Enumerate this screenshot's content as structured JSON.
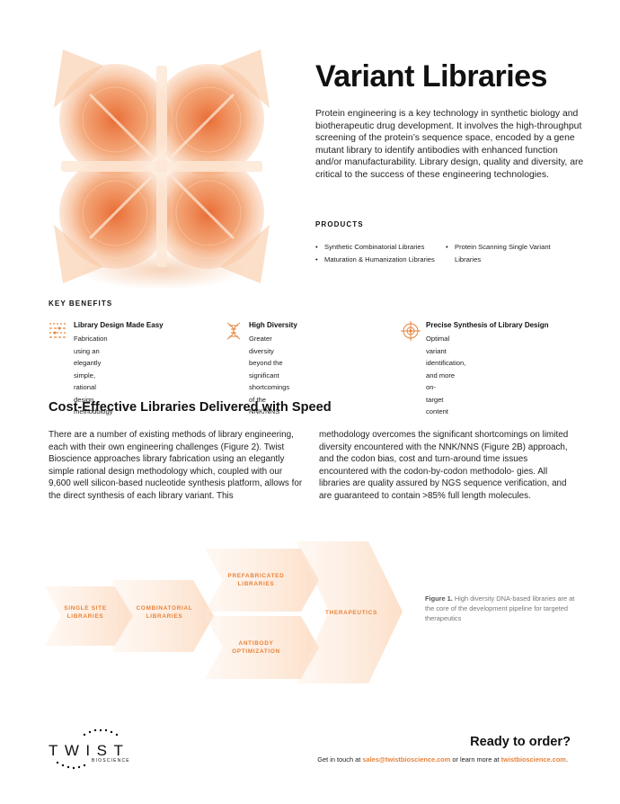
{
  "title": "Variant Libraries",
  "intro": "Protein engineering is a key technology in synthetic biology and biotherapeutic drug development. It involves the high-throughput screening of the protein’s sequence space, encoded by a gene mutant library to identify antibodies with enhanced function and/or manufacturability. Library design, quality and diversity, are critical to the success of these engineering technologies.",
  "products": {
    "label": "PRODUCTS",
    "items": [
      "Synthetic Combinatorial Libraries",
      "Maturation & Humanization Libraries",
      "Protein Scanning Single Variant",
      "Libraries"
    ]
  },
  "key_benefits": {
    "label": "KEY BENEFITS",
    "items": [
      {
        "title": "Library Design Made Easy",
        "line1": "Fabrication using an elegantly simple,",
        "line2": "rational design methodology",
        "icon": "library-design-icon"
      },
      {
        "title": "High Diversity",
        "line1": "Greater diversity beyond the significant",
        "line2": "shortcomings of the NNK/NNS",
        "icon": "diversity-icon"
      },
      {
        "title": "Precise Synthesis of Library Design",
        "line1": "Optimal variant identification, and more on-",
        "line2": "target content",
        "icon": "crosshair-icon"
      }
    ]
  },
  "section2": {
    "heading": "Cost-Effective Libraries Delivered with Speed",
    "col1": "There are a number of existing methods of library engineering, each with their own engineering challenges (Figure 2). Twist Bioscience approaches library fabrication using an elegantly simple rational design methodology which, coupled with our 9,600 well silicon-based nucleotide synthesis platform, allows for the direct synthesis of each library variant. This",
    "col2": "methodology overcomes the significant shortcomings on limited diversity encountered with the NNK/NNS (Figure 2B) approach, and the codon bias, cost and turn-around time issues encountered with the codon-by-codon methodolo- gies. All libraries are quality assured by NGS sequence verification, and are guaranteed to contain >85% full length molecules."
  },
  "figure": {
    "steps": {
      "single_site": [
        "SINGLE SITE",
        "LIBRARIES"
      ],
      "combinatorial": [
        "COMBINATORIAL",
        "LIBRARIES"
      ],
      "prefabricated": [
        "PREFABRICATED",
        "LIBRARIES"
      ],
      "antibody": [
        "ANTIBODY",
        "OPTIMIZATION"
      ],
      "therapeutics": [
        "THERAPEUTICS"
      ]
    },
    "caption_bold": "Figure 1.",
    "caption_text": " High diversity DNA-based libraries are at the core of the development pipeline for targeted therapeutics"
  },
  "footer": {
    "logo_word": "TWIST",
    "logo_sub": "BIOSCIENCE",
    "cta": "Ready to order?",
    "contact_pre": "Get in touch at ",
    "email": "sales@twistbioscience.com",
    "contact_mid": " or learn more at ",
    "site": "twistbioscience.com",
    "contact_end": "."
  },
  "colors": {
    "accent": "#e8833a",
    "peach": "#fdebdc"
  }
}
